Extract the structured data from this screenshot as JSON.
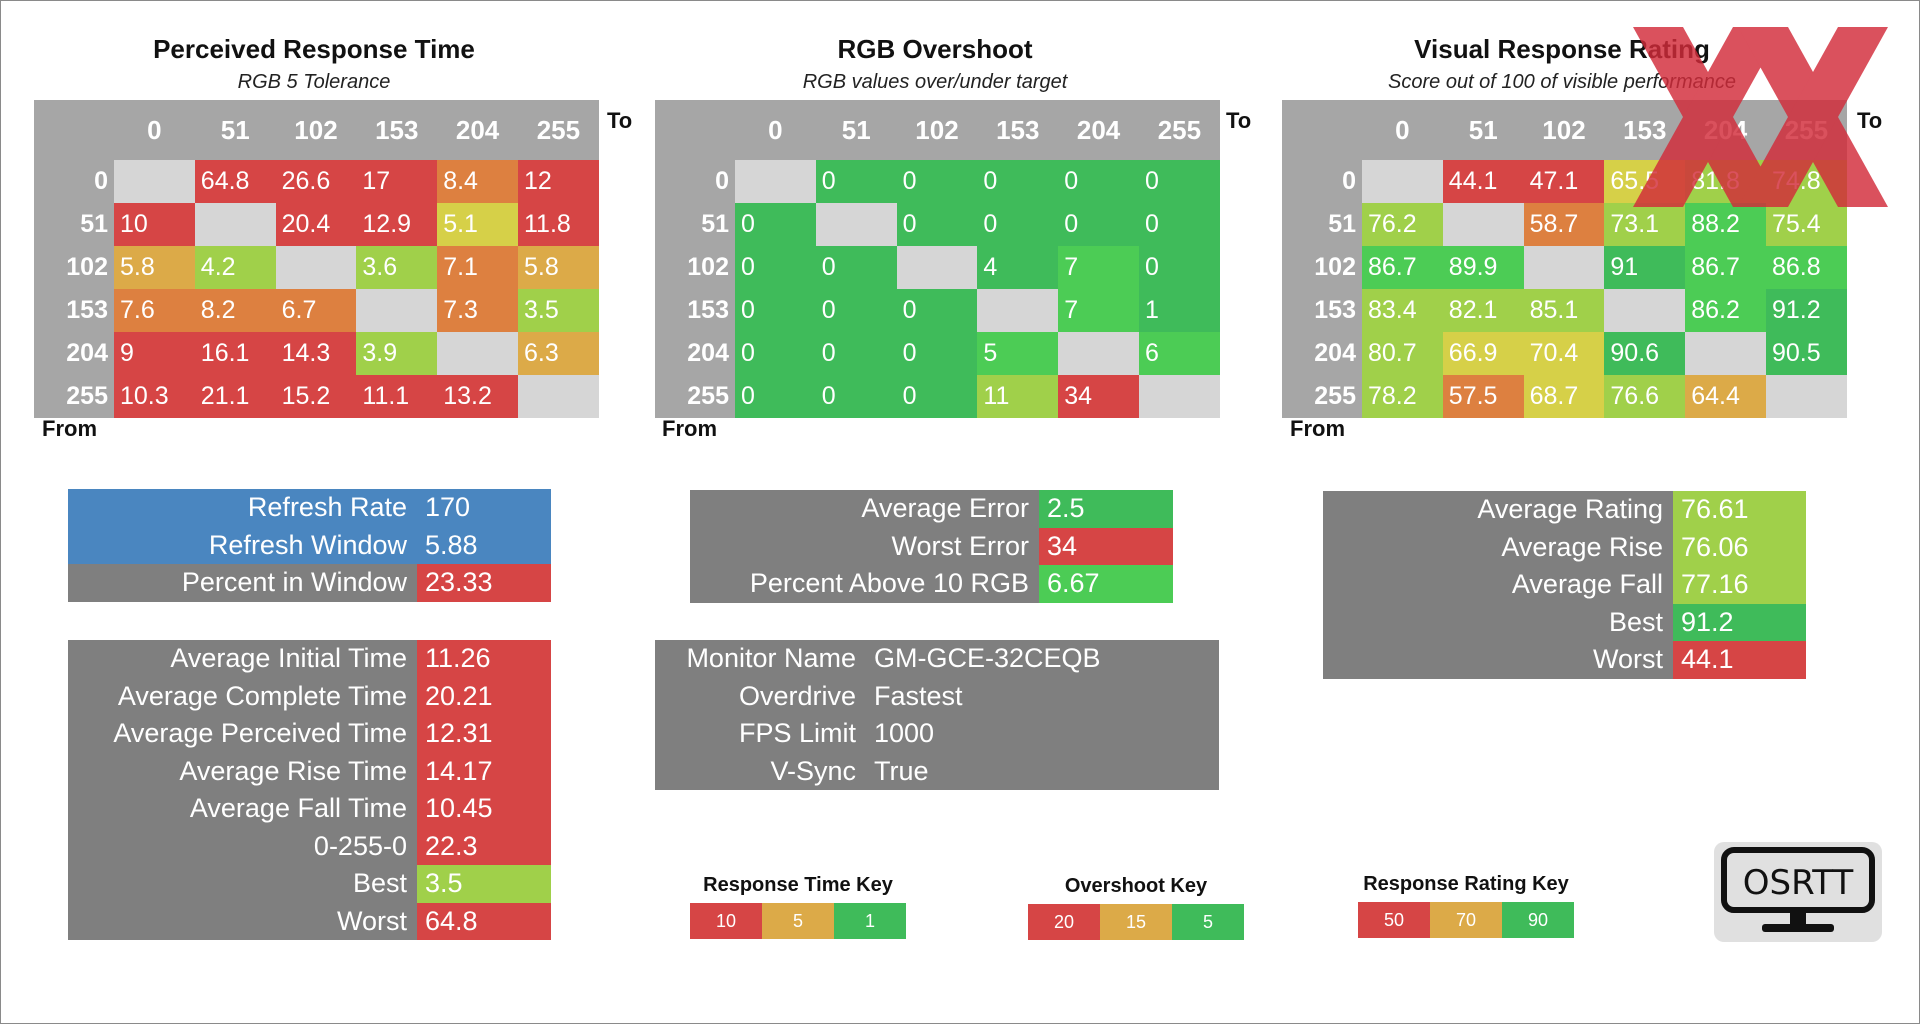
{
  "colors": {
    "red": "#d64545",
    "orange": "#dd8040",
    "yellow_orange": "#dcaa48",
    "yellow": "#d6d048",
    "light_green": "#a0d04a",
    "green": "#3fbb5a",
    "bright_green": "#4ccc55",
    "diag_gray": "#d6d6d6",
    "header_gray": "#a6a6a6",
    "panel_gray": "#7f7f7f",
    "blue": "#4a86c0"
  },
  "matrix_labels": {
    "to": "To",
    "from": "From"
  },
  "levels": [
    "0",
    "51",
    "102",
    "153",
    "204",
    "255"
  ],
  "prt": {
    "title": "Perceived Response Time",
    "subtitle": "RGB 5 Tolerance",
    "rows": [
      [
        null,
        "64.8",
        "26.6",
        "17",
        "8.4",
        "12"
      ],
      [
        "10",
        null,
        "20.4",
        "12.9",
        "5.1",
        "11.8"
      ],
      [
        "5.8",
        "4.2",
        null,
        "3.6",
        "7.1",
        "5.8"
      ],
      [
        "7.6",
        "8.2",
        "6.7",
        null,
        "7.3",
        "3.5"
      ],
      [
        "9",
        "16.1",
        "14.3",
        "3.9",
        null,
        "6.3"
      ],
      [
        "10.3",
        "21.1",
        "15.2",
        "11.1",
        "13.2",
        null
      ]
    ],
    "colors": [
      [
        null,
        "red",
        "red",
        "red",
        "orange",
        "red"
      ],
      [
        "red",
        null,
        "red",
        "red",
        "yellow",
        "red"
      ],
      [
        "yellow_orange",
        "light_green",
        null,
        "light_green",
        "orange",
        "yellow_orange"
      ],
      [
        "orange",
        "orange",
        "orange",
        null,
        "orange",
        "light_green"
      ],
      [
        "red",
        "red",
        "red",
        "light_green",
        null,
        "yellow_orange"
      ],
      [
        "red",
        "red",
        "red",
        "red",
        "red",
        null
      ]
    ]
  },
  "overshoot": {
    "title": "RGB Overshoot",
    "subtitle": "RGB values over/under target",
    "rows": [
      [
        null,
        "0",
        "0",
        "0",
        "0",
        "0"
      ],
      [
        "0",
        null,
        "0",
        "0",
        "0",
        "0"
      ],
      [
        "0",
        "0",
        null,
        "4",
        "7",
        "0"
      ],
      [
        "0",
        "0",
        "0",
        null,
        "7",
        "1"
      ],
      [
        "0",
        "0",
        "0",
        "5",
        null,
        "6"
      ],
      [
        "0",
        "0",
        "0",
        "11",
        "34",
        null
      ]
    ],
    "colors": [
      [
        null,
        "green",
        "green",
        "green",
        "green",
        "green"
      ],
      [
        "green",
        null,
        "green",
        "green",
        "green",
        "green"
      ],
      [
        "green",
        "green",
        null,
        "green",
        "bright_green",
        "green"
      ],
      [
        "green",
        "green",
        "green",
        null,
        "bright_green",
        "green"
      ],
      [
        "green",
        "green",
        "green",
        "bright_green",
        null,
        "bright_green"
      ],
      [
        "green",
        "green",
        "green",
        "light_green",
        "red",
        null
      ]
    ]
  },
  "vrr": {
    "title": "Visual Response Rating",
    "subtitle": "Score out of 100 of visible performance",
    "rows": [
      [
        null,
        "44.1",
        "47.1",
        "65.5",
        "81.8",
        "74.8"
      ],
      [
        "76.2",
        null,
        "58.7",
        "73.1",
        "88.2",
        "75.4"
      ],
      [
        "86.7",
        "89.9",
        null,
        "91",
        "86.7",
        "86.8"
      ],
      [
        "83.4",
        "82.1",
        "85.1",
        null,
        "86.2",
        "91.2"
      ],
      [
        "80.7",
        "66.9",
        "70.4",
        "90.6",
        null,
        "90.5"
      ],
      [
        "78.2",
        "57.5",
        "68.7",
        "76.6",
        "64.4",
        null
      ]
    ],
    "colors": [
      [
        null,
        "red",
        "red",
        "yellow",
        "light_green",
        "light_green"
      ],
      [
        "light_green",
        null,
        "orange",
        "light_green",
        "bright_green",
        "light_green"
      ],
      [
        "bright_green",
        "bright_green",
        null,
        "green",
        "bright_green",
        "bright_green"
      ],
      [
        "light_green",
        "light_green",
        "light_green",
        null,
        "bright_green",
        "green"
      ],
      [
        "light_green",
        "yellow",
        "yellow",
        "green",
        null,
        "green"
      ],
      [
        "light_green",
        "orange",
        "yellow",
        "light_green",
        "yellow_orange",
        null
      ]
    ]
  },
  "refresh": [
    {
      "label": "Refresh Rate",
      "value": "170",
      "lab_color": "blue",
      "val_color": "blue"
    },
    {
      "label": "Refresh Window",
      "value": "5.88",
      "lab_color": "blue",
      "val_color": "blue"
    },
    {
      "label": "Percent in Window",
      "value": "23.33",
      "lab_color": "panel_gray",
      "val_color": "red"
    }
  ],
  "times": [
    {
      "label": "Average Initial Time",
      "value": "11.26",
      "val_color": "red"
    },
    {
      "label": "Average Complete Time",
      "value": "20.21",
      "val_color": "red"
    },
    {
      "label": "Average Perceived Time",
      "value": "12.31",
      "val_color": "red"
    },
    {
      "label": "Average Rise Time",
      "value": "14.17",
      "val_color": "red"
    },
    {
      "label": "Average Fall Time",
      "value": "10.45",
      "val_color": "red"
    },
    {
      "label": "0-255-0",
      "value": "22.3",
      "val_color": "red"
    },
    {
      "label": "Best",
      "value": "3.5",
      "val_color": "light_green"
    },
    {
      "label": "Worst",
      "value": "64.8",
      "val_color": "red"
    }
  ],
  "errors": [
    {
      "label": "Average Error",
      "value": "2.5",
      "val_color": "green"
    },
    {
      "label": "Worst Error",
      "value": "34",
      "val_color": "red"
    },
    {
      "label": "Percent Above 10 RGB",
      "value": "6.67",
      "val_color": "bright_green"
    }
  ],
  "monitor": [
    {
      "label": "Monitor Name",
      "value": "GM-GCE-32CEQB"
    },
    {
      "label": "Overdrive",
      "value": "Fastest"
    },
    {
      "label": "FPS Limit",
      "value": "1000"
    },
    {
      "label": "V-Sync",
      "value": "True"
    }
  ],
  "ratings": [
    {
      "label": "Average Rating",
      "value": "76.61",
      "val_color": "light_green"
    },
    {
      "label": "Average Rise",
      "value": "76.06",
      "val_color": "light_green"
    },
    {
      "label": "Average Fall",
      "value": "77.16",
      "val_color": "light_green"
    },
    {
      "label": "Best",
      "value": "91.2",
      "val_color": "green"
    },
    {
      "label": "Worst",
      "value": "44.1",
      "val_color": "red"
    }
  ],
  "keys": {
    "response": {
      "title": "Response Time Key",
      "cells": [
        {
          "v": "10",
          "c": "red"
        },
        {
          "v": "5",
          "c": "yellow_orange"
        },
        {
          "v": "1",
          "c": "green"
        }
      ]
    },
    "overshoot": {
      "title": "Overshoot Key",
      "cells": [
        {
          "v": "20",
          "c": "red"
        },
        {
          "v": "15",
          "c": "yellow_orange"
        },
        {
          "v": "5",
          "c": "green"
        }
      ]
    },
    "rating": {
      "title": "Response Rating Key",
      "cells": [
        {
          "v": "50",
          "c": "red"
        },
        {
          "v": "70",
          "c": "yellow_orange"
        },
        {
          "v": "90",
          "c": "green"
        }
      ]
    }
  },
  "logo": {
    "text": "OSRTT",
    "icon": "monitor-icon"
  },
  "badge": {
    "icon": "xx-badge-icon"
  }
}
